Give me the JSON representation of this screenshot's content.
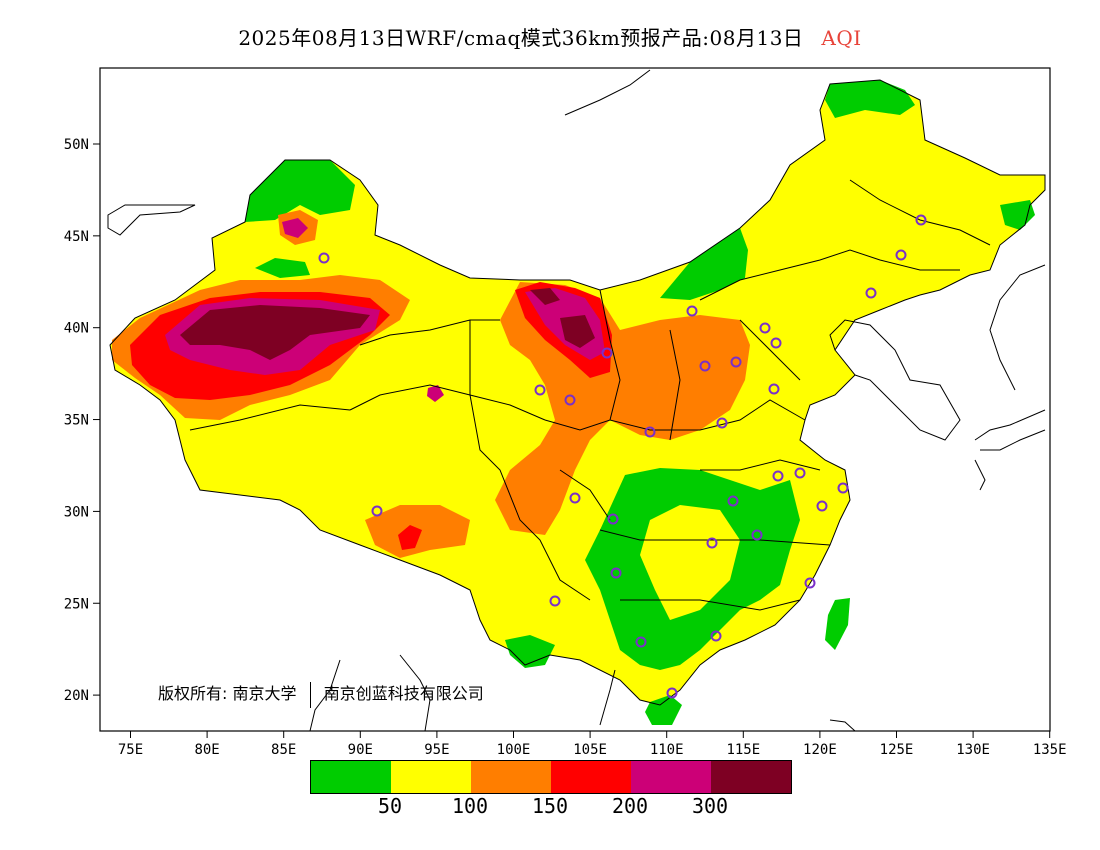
{
  "title": {
    "main": "2025年08月13日WRF/cmaq模式36km预报产品:08月13日",
    "variable": "AQI",
    "variable_color": "#e8443a"
  },
  "axes": {
    "lon_labels": [
      "75E",
      "80E",
      "85E",
      "90E",
      "95E",
      "100E",
      "105E",
      "110E",
      "115E",
      "120E",
      "125E",
      "130E",
      "135E"
    ],
    "lat_labels": [
      "50N",
      "45N",
      "40N",
      "35N",
      "30N",
      "25N",
      "20N"
    ],
    "lon_range": [
      73,
      135
    ],
    "lat_range": [
      18,
      54
    ]
  },
  "copyright": {
    "prefix": "版权所有:",
    "org1": "南京大学",
    "org2": "南京创蓝科技有限公司"
  },
  "legend": {
    "colors": [
      "#00cc00",
      "#ffff00",
      "#ff7e00",
      "#ff0000",
      "#cc0077",
      "#7e0023"
    ],
    "labels": [
      "50",
      "100",
      "150",
      "200",
      "300"
    ]
  },
  "colors": {
    "good": "#00cc00",
    "moderate": "#ffff00",
    "usg": "#ff7e00",
    "unhealthy": "#ff0000",
    "very_unhealthy": "#cc0077",
    "hazardous": "#7e0023",
    "station_marker": "#7a30c8"
  }
}
